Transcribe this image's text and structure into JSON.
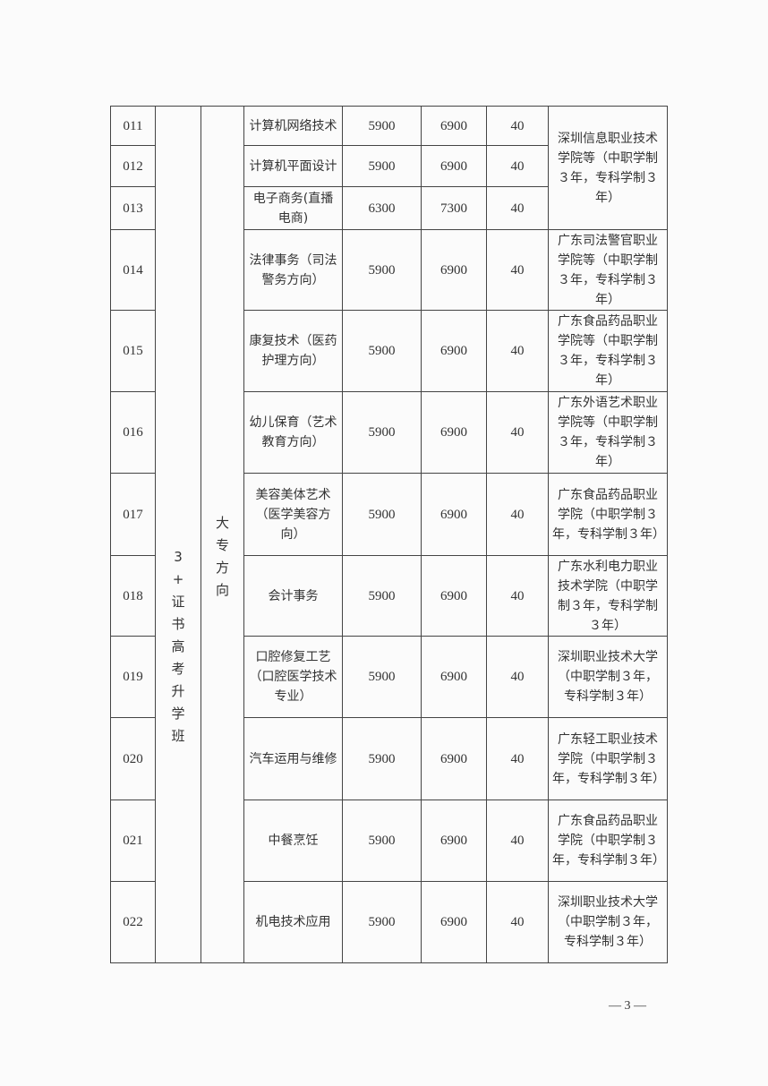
{
  "class_type": "3+证书高考升学班",
  "direction": "大专方向",
  "rows": [
    {
      "code": "011",
      "major": "计算机网络技术",
      "fee1": "5900",
      "fee2": "6900",
      "count": "40"
    },
    {
      "code": "012",
      "major": "计算机平面设计",
      "fee1": "5900",
      "fee2": "6900",
      "count": "40"
    },
    {
      "code": "013",
      "major": "电子商务(直播电商)",
      "fee1": "6300",
      "fee2": "7300",
      "count": "40"
    },
    {
      "code": "014",
      "major": "法律事务（司法警务方向）",
      "fee1": "5900",
      "fee2": "6900",
      "count": "40",
      "partner": "广东司法警官职业学院等（中职学制３年，专科学制３年）"
    },
    {
      "code": "015",
      "major": "康复技术（医药护理方向）",
      "fee1": "5900",
      "fee2": "6900",
      "count": "40",
      "partner": "广东食品药品职业学院等（中职学制３年，专科学制３年）"
    },
    {
      "code": "016",
      "major": "幼儿保育（艺术教育方向）",
      "fee1": "5900",
      "fee2": "6900",
      "count": "40",
      "partner": "广东外语艺术职业学院等（中职学制３年，专科学制３年）"
    },
    {
      "code": "017",
      "major": "美容美体艺术（医学美容方向）",
      "fee1": "5900",
      "fee2": "6900",
      "count": "40",
      "partner": "广东食品药品职业学院（中职学制３年，专科学制３年）"
    },
    {
      "code": "018",
      "major": "会计事务",
      "fee1": "5900",
      "fee2": "6900",
      "count": "40",
      "partner": "广东水利电力职业技术学院（中职学制３年，专科学制３年）"
    },
    {
      "code": "019",
      "major": "口腔修复工艺（口腔医学技术专业）",
      "fee1": "5900",
      "fee2": "6900",
      "count": "40",
      "partner": "深圳职业技术大学（中职学制３年，专科学制３年）"
    },
    {
      "code": "020",
      "major": "汽车运用与维修",
      "fee1": "5900",
      "fee2": "6900",
      "count": "40",
      "partner": "广东轻工职业技术学院（中职学制３年，专科学制３年）"
    },
    {
      "code": "021",
      "major": "中餐烹饪",
      "fee1": "5900",
      "fee2": "6900",
      "count": "40",
      "partner": "广东食品药品职业学院（中职学制３年，专科学制３年）"
    },
    {
      "code": "022",
      "major": "机电技术应用",
      "fee1": "5900",
      "fee2": "6900",
      "count": "40",
      "partner": "深圳职业技术大学（中职学制３年，专科学制３年）"
    }
  ],
  "partner_011_013": "深圳信息职业技术学院等（中职学制３年，专科学制３年）",
  "page_number": "— 3 —"
}
